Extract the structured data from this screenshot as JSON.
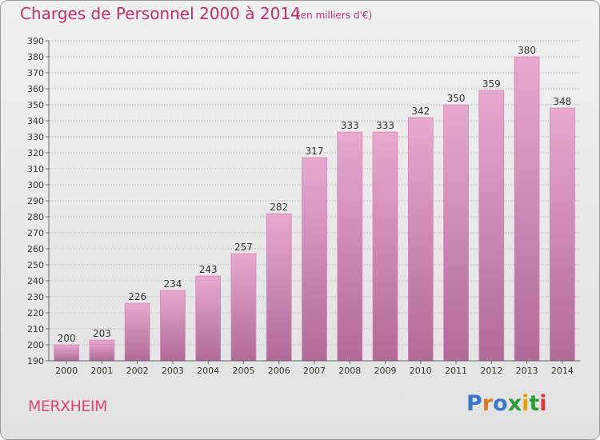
{
  "header": {
    "title": "Charges de Personnel 2000 à 2014",
    "units": "(en milliers d'€)"
  },
  "footer": {
    "commune": "MERXHEIM",
    "logo": "Proxiti"
  },
  "colors": {
    "title": "#c0306a",
    "bar_top": "#e8a8d0",
    "bar_bottom": "#b06a98",
    "grid": "#b0b0b0",
    "background": "#e8e8e8"
  },
  "chart_data": {
    "type": "bar",
    "categories": [
      "2000",
      "2001",
      "2002",
      "2003",
      "2004",
      "2005",
      "2006",
      "2007",
      "2008",
      "2009",
      "2010",
      "2011",
      "2012",
      "2013",
      "2014"
    ],
    "values": [
      200,
      203,
      226,
      234,
      243,
      257,
      282,
      317,
      333,
      333,
      342,
      350,
      359,
      380,
      348
    ],
    "title": "Charges de Personnel 2000 à 2014",
    "ylim": [
      190,
      390
    ],
    "ytick_step": 10,
    "grid": true
  }
}
